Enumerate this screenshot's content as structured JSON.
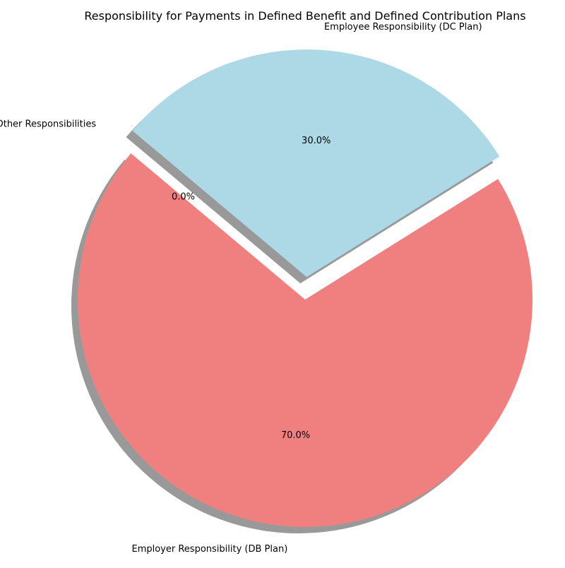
{
  "chart_data": {
    "type": "pie",
    "title": "Responsibility for Payments in Defined Benefit and Defined Contribution Plans",
    "slices": [
      {
        "label": "Employer Responsibility (DB Plan)",
        "value": 70,
        "percent_label": "70.0%",
        "color": "#f08080",
        "exploded": false
      },
      {
        "label": "Employee Responsibility (DC Plan)",
        "value": 30,
        "percent_label": "30.0%",
        "color": "#add8e6",
        "exploded": true
      },
      {
        "label": "Other Responsibilities",
        "value": 0,
        "percent_label": "0.0%",
        "color": "#90ee90",
        "exploded": true
      }
    ],
    "start_angle_deg": 140,
    "shadow": true,
    "legend": "none"
  }
}
